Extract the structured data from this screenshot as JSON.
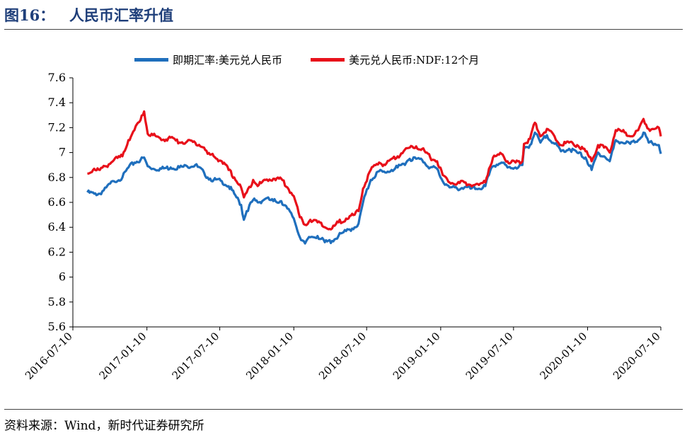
{
  "header": {
    "figure_number": "图16：",
    "title": "人民币汇率升值"
  },
  "footer": {
    "source": "资料来源：Wind，新时代证券研究所"
  },
  "colors": {
    "spot": "#1f6fbd",
    "ndf": "#e8101a",
    "title": "#1f3f7a"
  },
  "chart_data": {
    "type": "line",
    "title": "",
    "xlabel": "",
    "ylabel": "",
    "ylim": [
      5.6,
      7.6
    ],
    "yticks": [
      "7.6",
      "7.4",
      "7.2",
      "7",
      "6.8",
      "6.6",
      "6.4",
      "6.2",
      "6",
      "5.8",
      "5.6"
    ],
    "xlim": [
      "2016-07-10",
      "2020-07-10"
    ],
    "xticks": [
      "2016-07-10",
      "2017-01-10",
      "2017-07-10",
      "2018-01-10",
      "2018-07-10",
      "2019-01-10",
      "2019-07-10",
      "2020-01-10",
      "2020-07-10"
    ],
    "grid": false,
    "legend_position": "top",
    "series": [
      {
        "name": "即期汇率:美元兑人民币",
        "color": "#1f6fbd",
        "points": [
          [
            "2016-08-15",
            6.68
          ],
          [
            "2016-09-01",
            6.67
          ],
          [
            "2016-09-15",
            6.67
          ],
          [
            "2016-10-01",
            6.72
          ],
          [
            "2016-10-20",
            6.77
          ],
          [
            "2016-11-10",
            6.8
          ],
          [
            "2016-11-25",
            6.88
          ],
          [
            "2016-12-10",
            6.92
          ],
          [
            "2016-12-25",
            6.94
          ],
          [
            "2017-01-03",
            6.96
          ],
          [
            "2017-01-12",
            6.89
          ],
          [
            "2017-01-25",
            6.87
          ],
          [
            "2017-02-15",
            6.87
          ],
          [
            "2017-03-10",
            6.88
          ],
          [
            "2017-04-01",
            6.88
          ],
          [
            "2017-04-20",
            6.89
          ],
          [
            "2017-05-10",
            6.9
          ],
          [
            "2017-06-01",
            6.84
          ],
          [
            "2017-06-10",
            6.8
          ],
          [
            "2017-06-25",
            6.78
          ],
          [
            "2017-07-15",
            6.77
          ],
          [
            "2017-08-01",
            6.73
          ],
          [
            "2017-08-15",
            6.67
          ],
          [
            "2017-09-01",
            6.58
          ],
          [
            "2017-09-08",
            6.46
          ],
          [
            "2017-09-15",
            6.53
          ],
          [
            "2017-10-01",
            6.62
          ],
          [
            "2017-10-15",
            6.6
          ],
          [
            "2017-11-01",
            6.63
          ],
          [
            "2017-11-20",
            6.61
          ],
          [
            "2017-12-10",
            6.61
          ],
          [
            "2017-12-25",
            6.55
          ],
          [
            "2018-01-10",
            6.47
          ],
          [
            "2018-01-25",
            6.32
          ],
          [
            "2018-02-07",
            6.27
          ],
          [
            "2018-02-20",
            6.32
          ],
          [
            "2018-03-10",
            6.33
          ],
          [
            "2018-03-28",
            6.28
          ],
          [
            "2018-04-15",
            6.29
          ],
          [
            "2018-05-01",
            6.33
          ],
          [
            "2018-05-20",
            6.37
          ],
          [
            "2018-06-10",
            6.4
          ],
          [
            "2018-06-20",
            6.43
          ],
          [
            "2018-07-01",
            6.6
          ],
          [
            "2018-07-20",
            6.78
          ],
          [
            "2018-08-10",
            6.85
          ],
          [
            "2018-08-25",
            6.84
          ],
          [
            "2018-09-10",
            6.86
          ],
          [
            "2018-09-25",
            6.88
          ],
          [
            "2018-10-10",
            6.91
          ],
          [
            "2018-10-25",
            6.95
          ],
          [
            "2018-11-10",
            6.95
          ],
          [
            "2018-11-25",
            6.94
          ],
          [
            "2018-12-15",
            6.88
          ],
          [
            "2019-01-01",
            6.87
          ],
          [
            "2019-01-15",
            6.77
          ],
          [
            "2019-02-01",
            6.72
          ],
          [
            "2019-02-20",
            6.71
          ],
          [
            "2019-03-10",
            6.72
          ],
          [
            "2019-03-25",
            6.71
          ],
          [
            "2019-04-15",
            6.71
          ],
          [
            "2019-05-01",
            6.73
          ],
          [
            "2019-05-10",
            6.82
          ],
          [
            "2019-05-20",
            6.89
          ],
          [
            "2019-06-10",
            6.92
          ],
          [
            "2019-06-25",
            6.88
          ],
          [
            "2019-07-15",
            6.88
          ],
          [
            "2019-08-01",
            6.9
          ],
          [
            "2019-08-05",
            7.03
          ],
          [
            "2019-08-20",
            7.06
          ],
          [
            "2019-09-01",
            7.16
          ],
          [
            "2019-09-15",
            7.08
          ],
          [
            "2019-10-01",
            7.14
          ],
          [
            "2019-10-20",
            7.07
          ],
          [
            "2019-11-05",
            7.01
          ],
          [
            "2019-11-25",
            7.03
          ],
          [
            "2019-12-15",
            7.0
          ],
          [
            "2020-01-05",
            6.96
          ],
          [
            "2020-01-20",
            6.86
          ],
          [
            "2020-02-05",
            7.0
          ],
          [
            "2020-02-20",
            6.97
          ],
          [
            "2020-03-05",
            6.93
          ],
          [
            "2020-03-20",
            7.1
          ],
          [
            "2020-04-05",
            7.08
          ],
          [
            "2020-04-25",
            7.07
          ],
          [
            "2020-05-15",
            7.1
          ],
          [
            "2020-05-28",
            7.16
          ],
          [
            "2020-06-10",
            7.08
          ],
          [
            "2020-06-25",
            7.07
          ],
          [
            "2020-07-05",
            7.06
          ],
          [
            "2020-07-10",
            6.99
          ]
        ]
      },
      {
        "name": "美元兑人民币:NDF:12个月",
        "color": "#e8101a",
        "points": [
          [
            "2016-08-15",
            6.83
          ],
          [
            "2016-09-01",
            6.87
          ],
          [
            "2016-09-15",
            6.86
          ],
          [
            "2016-10-01",
            6.89
          ],
          [
            "2016-10-20",
            6.94
          ],
          [
            "2016-11-10",
            6.97
          ],
          [
            "2016-11-25",
            7.1
          ],
          [
            "2016-12-10",
            7.18
          ],
          [
            "2016-12-25",
            7.26
          ],
          [
            "2017-01-03",
            7.33
          ],
          [
            "2017-01-12",
            7.15
          ],
          [
            "2017-01-25",
            7.14
          ],
          [
            "2017-02-15",
            7.1
          ],
          [
            "2017-03-10",
            7.12
          ],
          [
            "2017-04-01",
            7.08
          ],
          [
            "2017-04-20",
            7.09
          ],
          [
            "2017-05-10",
            7.08
          ],
          [
            "2017-06-01",
            7.04
          ],
          [
            "2017-06-10",
            6.99
          ],
          [
            "2017-06-25",
            6.97
          ],
          [
            "2017-07-15",
            6.93
          ],
          [
            "2017-08-01",
            6.86
          ],
          [
            "2017-08-15",
            6.8
          ],
          [
            "2017-09-01",
            6.72
          ],
          [
            "2017-09-08",
            6.64
          ],
          [
            "2017-09-15",
            6.68
          ],
          [
            "2017-10-01",
            6.78
          ],
          [
            "2017-10-15",
            6.74
          ],
          [
            "2017-11-01",
            6.78
          ],
          [
            "2017-11-20",
            6.79
          ],
          [
            "2017-12-10",
            6.79
          ],
          [
            "2017-12-25",
            6.72
          ],
          [
            "2018-01-10",
            6.65
          ],
          [
            "2018-01-25",
            6.48
          ],
          [
            "2018-02-07",
            6.42
          ],
          [
            "2018-02-20",
            6.46
          ],
          [
            "2018-03-10",
            6.44
          ],
          [
            "2018-03-28",
            6.4
          ],
          [
            "2018-04-15",
            6.39
          ],
          [
            "2018-05-01",
            6.44
          ],
          [
            "2018-05-20",
            6.47
          ],
          [
            "2018-06-10",
            6.5
          ],
          [
            "2018-06-20",
            6.53
          ],
          [
            "2018-07-01",
            6.71
          ],
          [
            "2018-07-20",
            6.86
          ],
          [
            "2018-08-10",
            6.92
          ],
          [
            "2018-08-25",
            6.9
          ],
          [
            "2018-09-10",
            6.95
          ],
          [
            "2018-09-25",
            6.97
          ],
          [
            "2018-10-10",
            7.01
          ],
          [
            "2018-10-25",
            7.04
          ],
          [
            "2018-11-10",
            7.05
          ],
          [
            "2018-11-25",
            7.03
          ],
          [
            "2018-12-15",
            6.96
          ],
          [
            "2019-01-01",
            6.93
          ],
          [
            "2019-01-15",
            6.82
          ],
          [
            "2019-02-01",
            6.76
          ],
          [
            "2019-02-20",
            6.75
          ],
          [
            "2019-03-10",
            6.76
          ],
          [
            "2019-03-25",
            6.74
          ],
          [
            "2019-04-15",
            6.74
          ],
          [
            "2019-05-01",
            6.76
          ],
          [
            "2019-05-10",
            6.87
          ],
          [
            "2019-05-20",
            6.96
          ],
          [
            "2019-06-10",
            6.99
          ],
          [
            "2019-06-25",
            6.93
          ],
          [
            "2019-07-15",
            6.92
          ],
          [
            "2019-08-01",
            6.93
          ],
          [
            "2019-08-05",
            7.07
          ],
          [
            "2019-08-20",
            7.11
          ],
          [
            "2019-09-01",
            7.24
          ],
          [
            "2019-09-15",
            7.13
          ],
          [
            "2019-10-01",
            7.19
          ],
          [
            "2019-10-20",
            7.13
          ],
          [
            "2019-11-05",
            7.06
          ],
          [
            "2019-11-25",
            7.08
          ],
          [
            "2019-12-15",
            7.06
          ],
          [
            "2020-01-05",
            7.01
          ],
          [
            "2020-01-20",
            6.93
          ],
          [
            "2020-02-05",
            7.06
          ],
          [
            "2020-02-20",
            7.04
          ],
          [
            "2020-03-05",
            7.0
          ],
          [
            "2020-03-20",
            7.18
          ],
          [
            "2020-04-05",
            7.17
          ],
          [
            "2020-04-25",
            7.13
          ],
          [
            "2020-05-15",
            7.18
          ],
          [
            "2020-05-28",
            7.27
          ],
          [
            "2020-06-10",
            7.19
          ],
          [
            "2020-06-25",
            7.19
          ],
          [
            "2020-07-05",
            7.2
          ],
          [
            "2020-07-10",
            7.13
          ]
        ]
      }
    ]
  }
}
